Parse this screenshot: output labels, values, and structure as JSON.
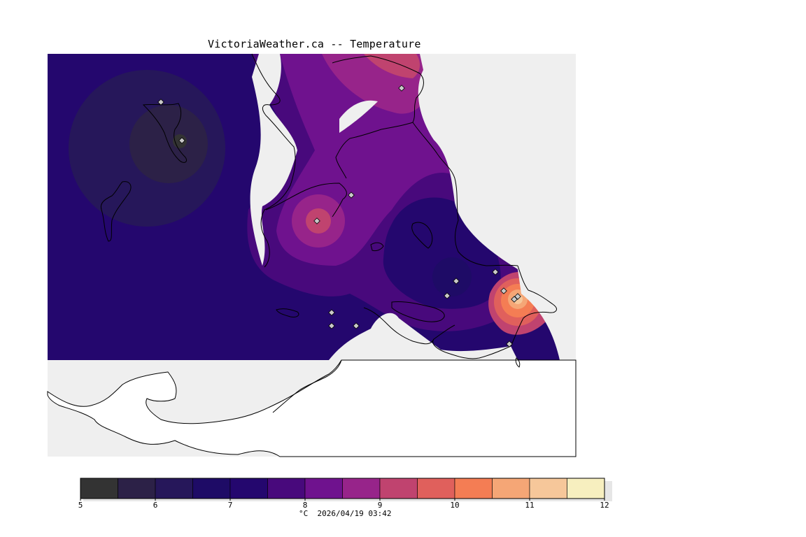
{
  "title": "VictoriaWeather.ca -- Temperature",
  "legend": {
    "unit": "°C",
    "timestamp": "2026/04/19 03:42",
    "ticks": [
      "5",
      "6",
      "7",
      "8",
      "9",
      "10",
      "11",
      "12"
    ],
    "bins": [
      {
        "from": 5.0,
        "to": 5.5,
        "color": "#333333"
      },
      {
        "from": 5.5,
        "to": 6.0,
        "color": "#2c2147"
      },
      {
        "from": 6.0,
        "to": 6.5,
        "color": "#26175a"
      },
      {
        "from": 6.5,
        "to": 7.0,
        "color": "#1e0b66"
      },
      {
        "from": 7.0,
        "to": 7.5,
        "color": "#24076e"
      },
      {
        "from": 7.5,
        "to": 8.0,
        "color": "#48097c"
      },
      {
        "from": 8.0,
        "to": 8.5,
        "color": "#6f128e"
      },
      {
        "from": 8.5,
        "to": 9.0,
        "color": "#97248a"
      },
      {
        "from": 9.0,
        "to": 9.5,
        "color": "#c0436f"
      },
      {
        "from": 9.5,
        "to": 10.0,
        "color": "#e0605c"
      },
      {
        "from": 10.0,
        "to": 10.5,
        "color": "#f47d54"
      },
      {
        "from": 10.5,
        "to": 11.0,
        "color": "#f5a676"
      },
      {
        "from": 11.0,
        "to": 11.5,
        "color": "#f6c79a"
      },
      {
        "from": 11.5,
        "to": 12.0,
        "color": "#f7efbf"
      }
    ]
  },
  "colors": {
    "background": "#ffffff",
    "map_background": "#efefef",
    "water": "#ffffff",
    "station_marker": "#c9c9c9"
  }
}
